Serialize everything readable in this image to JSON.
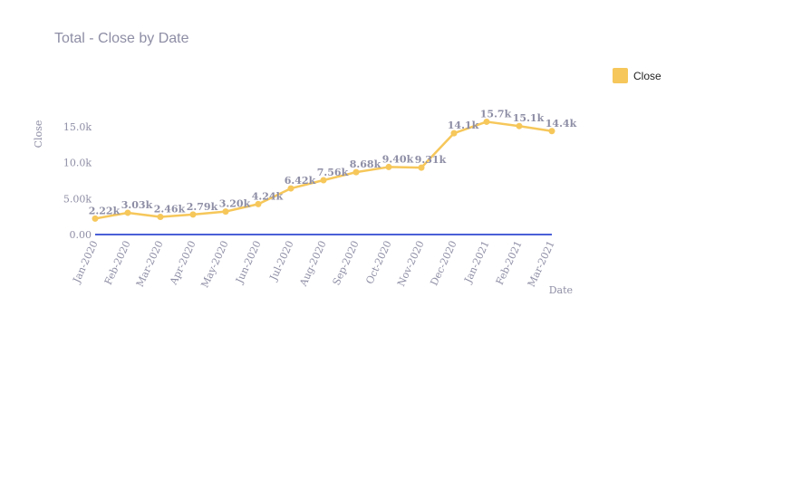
{
  "chart_data": {
    "type": "line",
    "title": "Total - Close by Date",
    "xlabel": "Date",
    "ylabel": "Close",
    "categories": [
      "Jan-2020",
      "Feb-2020",
      "Mar-2020",
      "Apr-2020",
      "May-2020",
      "Jun-2020",
      "Jul-2020",
      "Aug-2020",
      "Sep-2020",
      "Oct-2020",
      "Nov-2020",
      "Dec-2020",
      "Jan-2021",
      "Feb-2021",
      "Mar-2021"
    ],
    "series": [
      {
        "name": "Close",
        "color": "#f6c75a",
        "values": [
          2220,
          3030,
          2460,
          2790,
          3200,
          4240,
          6420,
          7560,
          8680,
          9400,
          9310,
          14100,
          15700,
          15100,
          14400
        ],
        "labels": [
          "2.22k",
          "3.03k",
          "2.46k",
          "2.79k",
          "3.20k",
          "4.24k",
          "6.42k",
          "7.56k",
          "8.68k",
          "9.40k",
          "9.31k",
          "14.1k",
          "15.7k",
          "15.1k",
          "14.4k"
        ]
      }
    ],
    "yticks": [
      0,
      5000,
      10000,
      15000
    ],
    "ytick_labels": [
      "0.00",
      "5.00k",
      "10.0k",
      "15.0k"
    ],
    "ylim": [
      0,
      17000
    ],
    "zero_line_color": "#4a5fd6",
    "legend_position": "top-right",
    "grid": false
  }
}
